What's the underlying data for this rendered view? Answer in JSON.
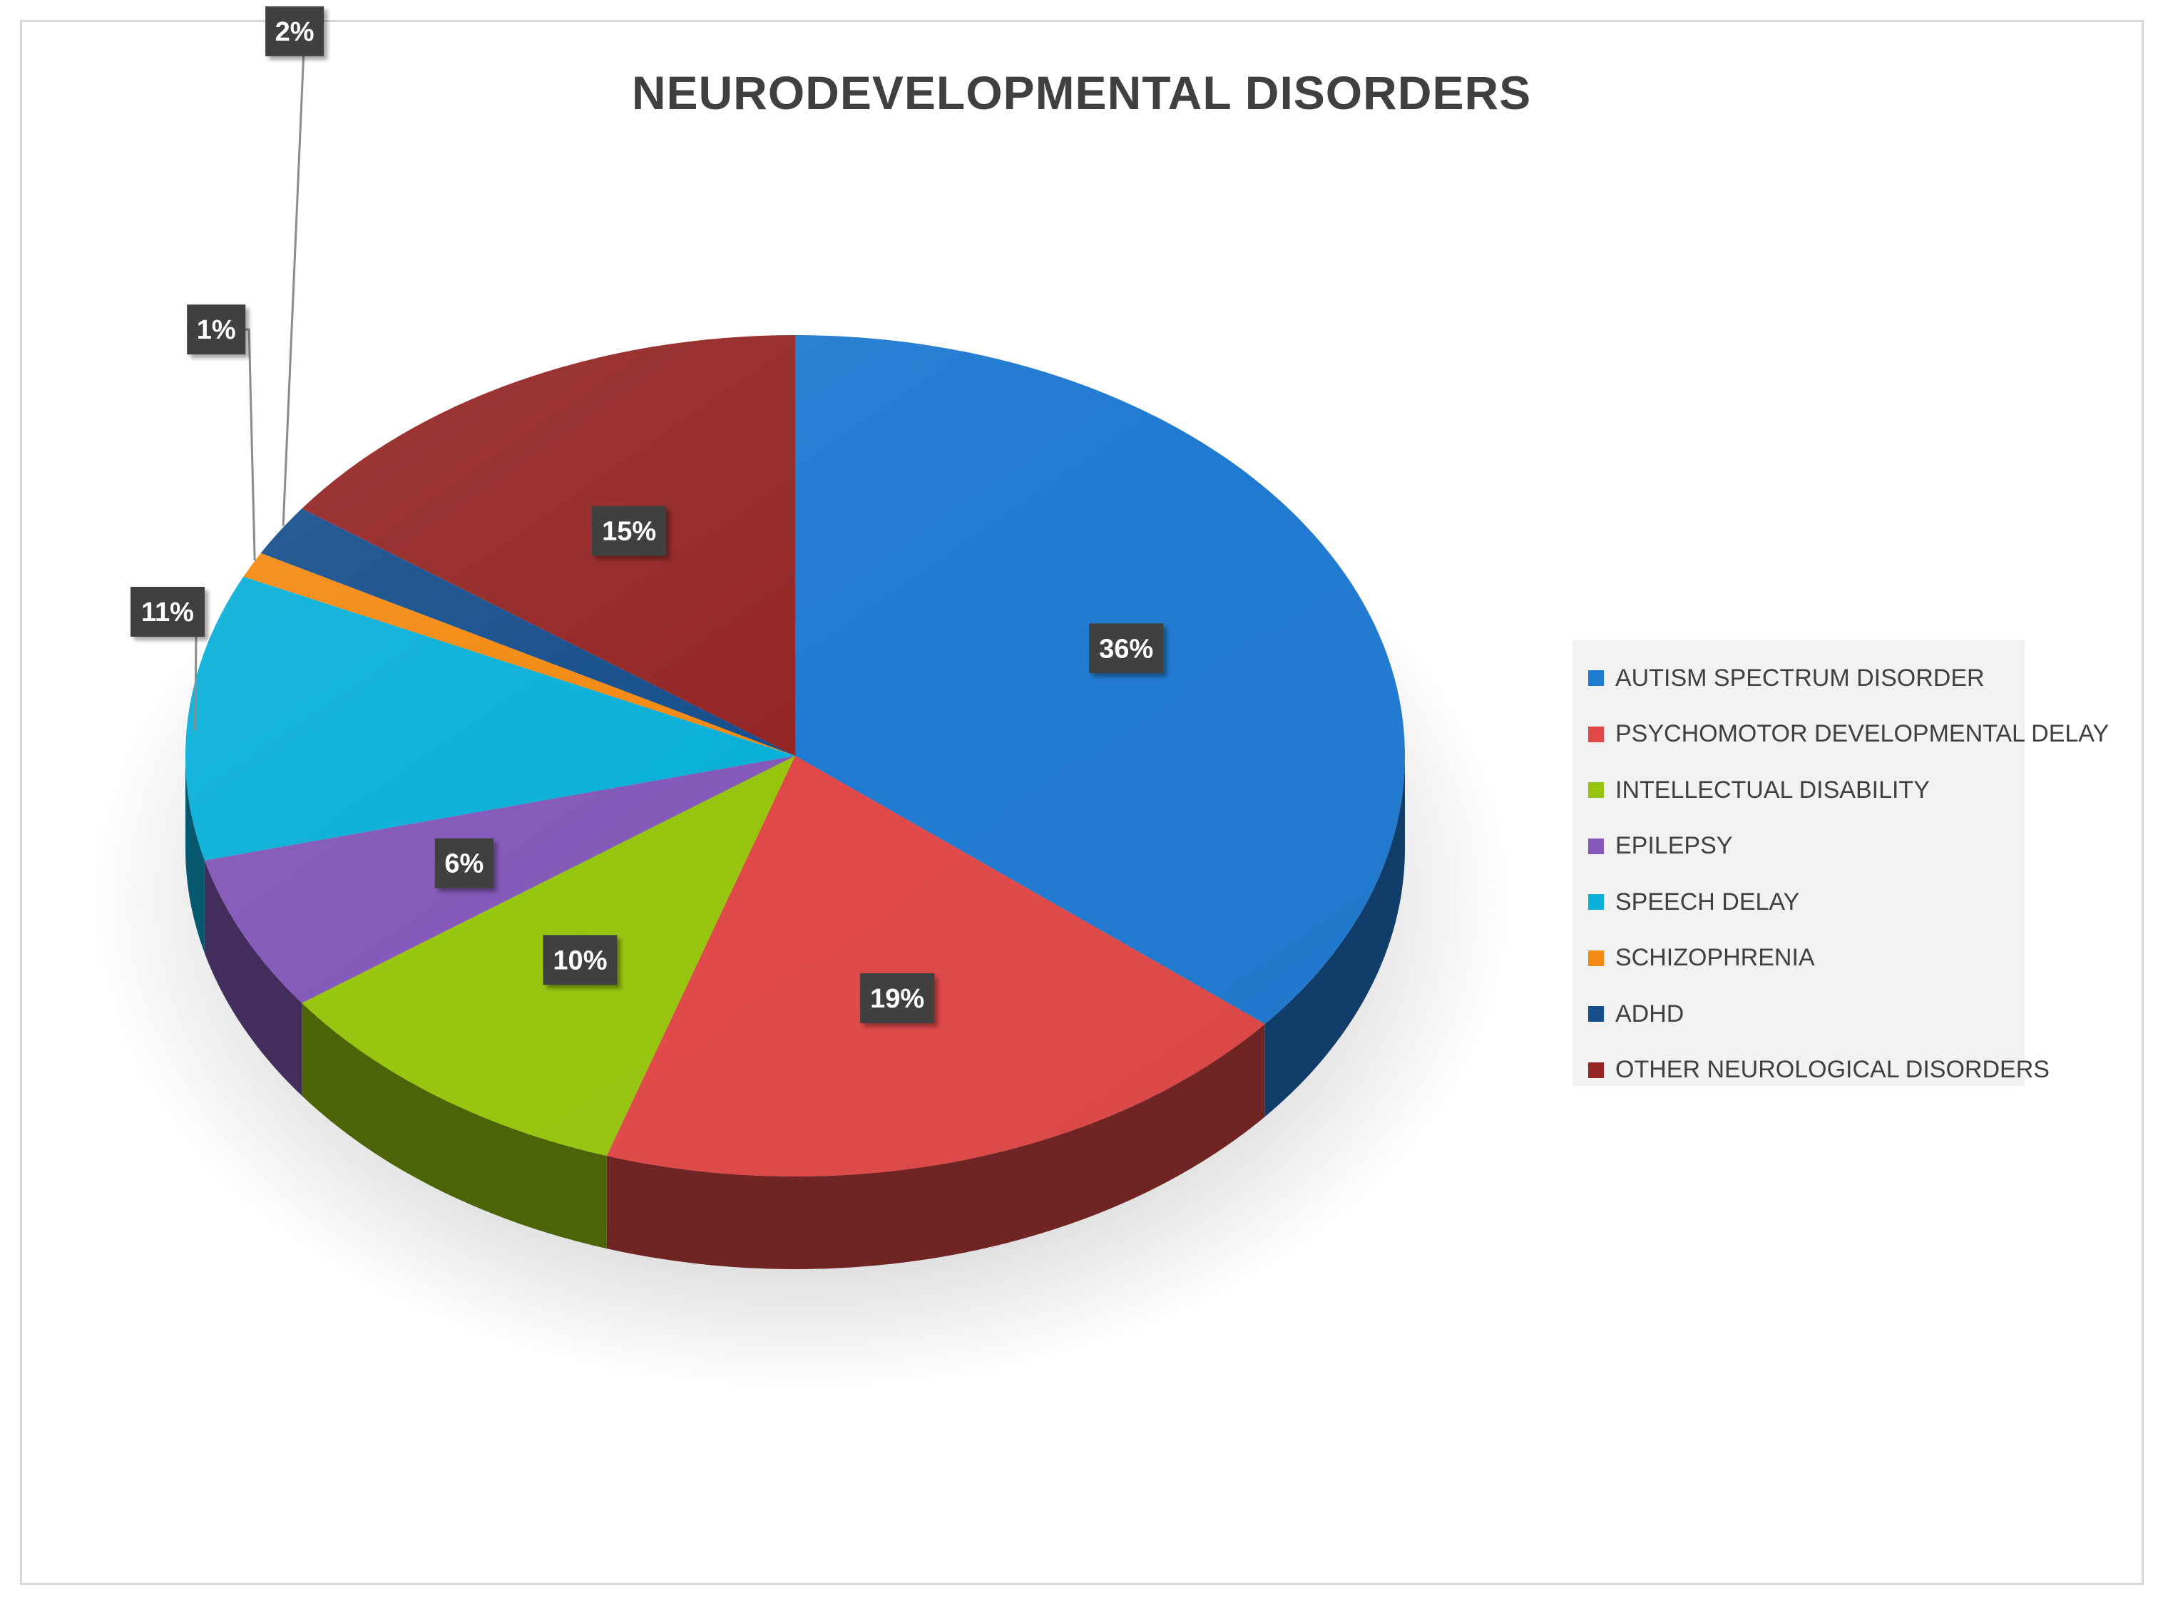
{
  "chart_data": {
    "type": "pie",
    "title": "NEURODEVELOPMENTAL DISORDERS",
    "legend_position": "right",
    "slices": [
      {
        "label": "AUTISM SPECTRUM DISORDER",
        "value": 36,
        "display": "36%",
        "color": "#1f7ad1"
      },
      {
        "label": "PSYCHOMOTOR DEVELOPMENTAL DELAY",
        "value": 19,
        "display": "19%",
        "color": "#e04848"
      },
      {
        "label": "INTELLECTUAL DISABILITY",
        "value": 10,
        "display": "10%",
        "color": "#97c50e"
      },
      {
        "label": "EPILEPSY",
        "value": 6,
        "display": "6%",
        "color": "#8459b9"
      },
      {
        "label": "SPEECH DELAY",
        "value": 11,
        "display": "11%",
        "color": "#0ab0d9"
      },
      {
        "label": "SCHIZOPHRENIA",
        "value": 1,
        "display": "1%",
        "color": "#f48a12"
      },
      {
        "label": "ADHD",
        "value": 2,
        "display": "2%",
        "color": "#164f8c"
      },
      {
        "label": "OTHER NEUROLOGICAL DISORDERS",
        "value": 15,
        "display": "15%",
        "color": "#932625"
      }
    ]
  }
}
